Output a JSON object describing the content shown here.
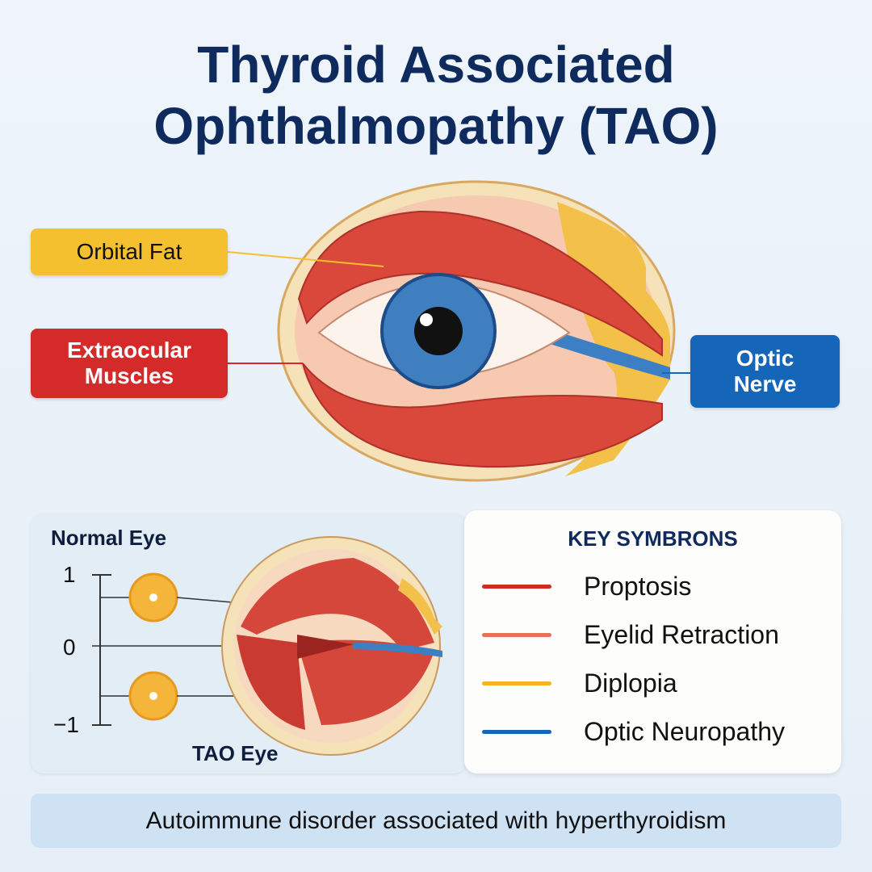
{
  "title": {
    "line1": "Thyroid Associated",
    "line2": "Ophthalmopathy (TAO)"
  },
  "labels": {
    "orbital_fat": "Orbital Fat",
    "extraocular_muscles": "Extraocular Muscles",
    "optic_nerve": "Optic Nerve"
  },
  "comparison": {
    "normal_label": "Normal Eye",
    "tao_label": "TAO Eye",
    "ticks": [
      "1",
      "0",
      "−1"
    ]
  },
  "key": {
    "heading": "KEY SYMBRONS",
    "items": [
      {
        "label": "Proptosis",
        "color": "#d42a25"
      },
      {
        "label": "Eyelid Retraction",
        "color": "#e8705a"
      },
      {
        "label": "Diplopia",
        "color": "#f2b420"
      },
      {
        "label": "Optic Neuropathy",
        "color": "#1565b8"
      }
    ]
  },
  "footer": "Autoimmune disorder associated with hyperthyroidism",
  "colors": {
    "title": "#0f2a5c",
    "fat": "#f5c030",
    "muscle": "#d42a2a",
    "nerve": "#1565b8"
  }
}
